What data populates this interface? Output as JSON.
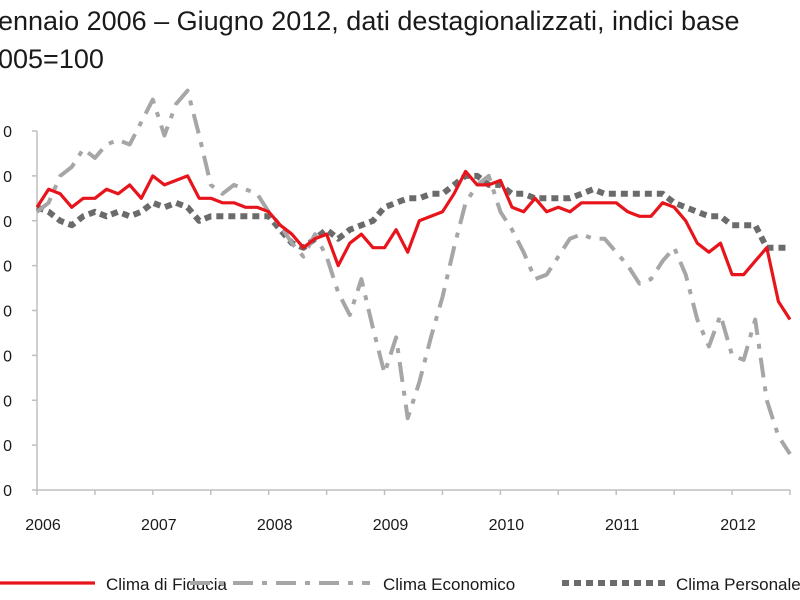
{
  "title_line1": "ennaio 2006 – Giugno 2012, dati  destagionalizzati, indici base",
  "title_line2": "005=100",
  "colors": {
    "fiducia": "#e8141b",
    "economico": "#a6a6a6",
    "personale": "#6b6b6b",
    "axis": "#bfbfbf"
  },
  "chart_data": {
    "type": "line",
    "ylim": [
      70,
      110
    ],
    "yticks": [
      70,
      75,
      80,
      85,
      90,
      95,
      100,
      105,
      110
    ],
    "ytick_labels": [
      "0",
      "0",
      "0",
      "0",
      "0",
      "0",
      "0",
      "0",
      "0"
    ],
    "xlim": [
      2006,
      2012.5
    ],
    "xticks": [
      2006,
      2007,
      2008,
      2009,
      2010,
      2011,
      2012
    ],
    "xtick_labels": [
      "2006",
      "2007",
      "2008",
      "2009",
      "2010",
      "2011",
      "2012"
    ],
    "series": [
      {
        "name": "Clima di Fiducia",
        "key": "fiducia",
        "style": "solid",
        "points": [
          [
            2006.0,
            101.5
          ],
          [
            2006.1,
            103.5
          ],
          [
            2006.2,
            103
          ],
          [
            2006.3,
            101.5
          ],
          [
            2006.4,
            102.5
          ],
          [
            2006.5,
            102.5
          ],
          [
            2006.6,
            103.5
          ],
          [
            2006.7,
            103
          ],
          [
            2006.8,
            104
          ],
          [
            2006.9,
            102.5
          ],
          [
            2007.0,
            105
          ],
          [
            2007.1,
            104
          ],
          [
            2007.2,
            104.5
          ],
          [
            2007.3,
            105
          ],
          [
            2007.4,
            102.5
          ],
          [
            2007.5,
            102.5
          ],
          [
            2007.6,
            102
          ],
          [
            2007.7,
            102
          ],
          [
            2007.8,
            101.5
          ],
          [
            2007.9,
            101.5
          ],
          [
            2008.0,
            101
          ],
          [
            2008.1,
            99.5
          ],
          [
            2008.2,
            98.5
          ],
          [
            2008.3,
            97
          ],
          [
            2008.4,
            98
          ],
          [
            2008.5,
            98.5
          ],
          [
            2008.6,
            95
          ],
          [
            2008.7,
            97.5
          ],
          [
            2008.8,
            98.5
          ],
          [
            2008.9,
            97
          ],
          [
            2009.0,
            97
          ],
          [
            2009.1,
            99
          ],
          [
            2009.2,
            96.5
          ],
          [
            2009.3,
            100
          ],
          [
            2009.4,
            100.5
          ],
          [
            2009.5,
            101
          ],
          [
            2009.6,
            103
          ],
          [
            2009.7,
            105.5
          ],
          [
            2009.8,
            104
          ],
          [
            2009.9,
            104
          ],
          [
            2010.0,
            104.5
          ],
          [
            2010.1,
            101.5
          ],
          [
            2010.2,
            101
          ],
          [
            2010.3,
            102.5
          ],
          [
            2010.4,
            101
          ],
          [
            2010.5,
            101.5
          ],
          [
            2010.6,
            101
          ],
          [
            2010.7,
            102
          ],
          [
            2010.8,
            102
          ],
          [
            2010.9,
            102
          ],
          [
            2011.0,
            102
          ],
          [
            2011.1,
            101
          ],
          [
            2011.2,
            100.5
          ],
          [
            2011.3,
            100.5
          ],
          [
            2011.4,
            102
          ],
          [
            2011.5,
            101.5
          ],
          [
            2011.6,
            100
          ],
          [
            2011.7,
            97.5
          ],
          [
            2011.8,
            96.5
          ],
          [
            2011.9,
            97.5
          ],
          [
            2012.0,
            94
          ],
          [
            2012.1,
            94
          ],
          [
            2012.2,
            95.5
          ],
          [
            2012.3,
            97
          ],
          [
            2012.4,
            91
          ],
          [
            2012.5,
            89
          ]
        ]
      },
      {
        "name": "Clima Economico",
        "key": "economico",
        "style": "dashdot",
        "points": [
          [
            2006.0,
            101
          ],
          [
            2006.1,
            102
          ],
          [
            2006.2,
            105
          ],
          [
            2006.3,
            106
          ],
          [
            2006.4,
            108
          ],
          [
            2006.5,
            107
          ],
          [
            2006.6,
            108.5
          ],
          [
            2006.7,
            109
          ],
          [
            2006.8,
            108.5
          ],
          [
            2006.9,
            111
          ],
          [
            2007.0,
            113.5
          ],
          [
            2007.1,
            109.5
          ],
          [
            2007.2,
            113
          ],
          [
            2007.3,
            114.5
          ],
          [
            2007.4,
            109.5
          ],
          [
            2007.5,
            104
          ],
          [
            2007.6,
            103
          ],
          [
            2007.7,
            104
          ],
          [
            2007.8,
            103.5
          ],
          [
            2007.9,
            103
          ],
          [
            2008.0,
            101
          ],
          [
            2008.1,
            99.5
          ],
          [
            2008.2,
            97.5
          ],
          [
            2008.3,
            96
          ],
          [
            2008.4,
            98.5
          ],
          [
            2008.5,
            96
          ],
          [
            2008.6,
            92
          ],
          [
            2008.7,
            89.5
          ],
          [
            2008.8,
            93.5
          ],
          [
            2008.9,
            88
          ],
          [
            2009.0,
            83
          ],
          [
            2009.1,
            87
          ],
          [
            2009.2,
            78
          ],
          [
            2009.3,
            82
          ],
          [
            2009.4,
            87
          ],
          [
            2009.5,
            91.5
          ],
          [
            2009.6,
            97
          ],
          [
            2009.7,
            102
          ],
          [
            2009.8,
            104
          ],
          [
            2009.9,
            105
          ],
          [
            2010.0,
            101
          ],
          [
            2010.1,
            99
          ],
          [
            2010.2,
            96.5
          ],
          [
            2010.3,
            93.5
          ],
          [
            2010.4,
            94
          ],
          [
            2010.5,
            96
          ],
          [
            2010.6,
            98
          ],
          [
            2010.7,
            98.5
          ],
          [
            2010.8,
            98
          ],
          [
            2010.9,
            98
          ],
          [
            2011.0,
            96.5
          ],
          [
            2011.1,
            95
          ],
          [
            2011.2,
            93
          ],
          [
            2011.3,
            93.5
          ],
          [
            2011.4,
            95.5
          ],
          [
            2011.5,
            97
          ],
          [
            2011.6,
            94
          ],
          [
            2011.7,
            89
          ],
          [
            2011.8,
            86
          ],
          [
            2011.9,
            89.5
          ],
          [
            2012.0,
            85
          ],
          [
            2012.1,
            84.5
          ],
          [
            2012.2,
            89
          ],
          [
            2012.3,
            80
          ],
          [
            2012.4,
            76
          ],
          [
            2012.5,
            74
          ]
        ]
      },
      {
        "name": "Clima Personale",
        "key": "personale",
        "style": "dotted",
        "points": [
          [
            2006.0,
            101.5
          ],
          [
            2006.1,
            101
          ],
          [
            2006.2,
            100
          ],
          [
            2006.3,
            99.5
          ],
          [
            2006.4,
            100.5
          ],
          [
            2006.5,
            101
          ],
          [
            2006.6,
            100.5
          ],
          [
            2006.7,
            101
          ],
          [
            2006.8,
            100.5
          ],
          [
            2006.9,
            101
          ],
          [
            2007.0,
            102
          ],
          [
            2007.1,
            101.5
          ],
          [
            2007.2,
            102
          ],
          [
            2007.3,
            101.5
          ],
          [
            2007.4,
            100
          ],
          [
            2007.5,
            100.5
          ],
          [
            2007.6,
            100.5
          ],
          [
            2007.7,
            100.5
          ],
          [
            2007.8,
            100.5
          ],
          [
            2007.9,
            100.5
          ],
          [
            2008.0,
            100.5
          ],
          [
            2008.1,
            99
          ],
          [
            2008.2,
            97.5
          ],
          [
            2008.3,
            97
          ],
          [
            2008.4,
            98
          ],
          [
            2008.5,
            99
          ],
          [
            2008.6,
            98
          ],
          [
            2008.7,
            99
          ],
          [
            2008.8,
            99.5
          ],
          [
            2008.9,
            100
          ],
          [
            2009.0,
            101.5
          ],
          [
            2009.1,
            102
          ],
          [
            2009.2,
            102.5
          ],
          [
            2009.3,
            102.5
          ],
          [
            2009.4,
            103
          ],
          [
            2009.5,
            103
          ],
          [
            2009.6,
            104
          ],
          [
            2009.7,
            105
          ],
          [
            2009.8,
            105
          ],
          [
            2009.9,
            104
          ],
          [
            2010.0,
            104
          ],
          [
            2010.1,
            103
          ],
          [
            2010.2,
            103
          ],
          [
            2010.3,
            102.5
          ],
          [
            2010.4,
            102.5
          ],
          [
            2010.5,
            102.5
          ],
          [
            2010.6,
            102.5
          ],
          [
            2010.7,
            103
          ],
          [
            2010.8,
            103.5
          ],
          [
            2010.9,
            103
          ],
          [
            2011.0,
            103
          ],
          [
            2011.1,
            103
          ],
          [
            2011.2,
            103
          ],
          [
            2011.3,
            103
          ],
          [
            2011.4,
            103
          ],
          [
            2011.5,
            102
          ],
          [
            2011.6,
            101.5
          ],
          [
            2011.7,
            101
          ],
          [
            2011.8,
            100.5
          ],
          [
            2011.9,
            100.5
          ],
          [
            2012.0,
            99.5
          ],
          [
            2012.1,
            99.5
          ],
          [
            2012.2,
            99.5
          ],
          [
            2012.3,
            97
          ],
          [
            2012.4,
            97
          ],
          [
            2012.5,
            97
          ]
        ]
      }
    ],
    "legend_position": "bottom"
  }
}
